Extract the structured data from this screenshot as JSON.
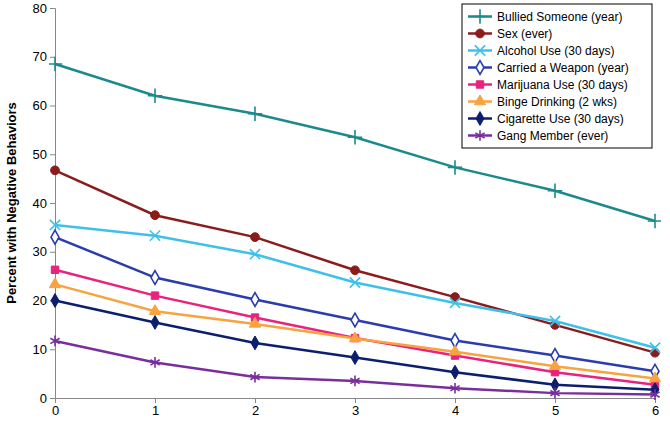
{
  "chart_data": {
    "type": "line",
    "y_label": "Percent with Negative Behaviors",
    "x": [
      0,
      1,
      2,
      3,
      4,
      5,
      6
    ],
    "xlim": [
      0,
      6
    ],
    "xticks": [
      0,
      1,
      2,
      3,
      4,
      5,
      6
    ],
    "ylim": [
      0,
      80
    ],
    "yticks": [
      0,
      10,
      20,
      30,
      40,
      50,
      60,
      70,
      80
    ],
    "grid": false,
    "legend": "top-right",
    "series": [
      {
        "name": "Bullied Someone (year)",
        "color": "#1b8a8c",
        "marker": "plus",
        "values": [
          68.5,
          62,
          58.3,
          53.5,
          47.3,
          42.5,
          36.3
        ]
      },
      {
        "name": "Sex (ever)",
        "color": "#8b1c1c",
        "marker": "circle",
        "values": [
          46.7,
          37.5,
          33,
          26.2,
          20.7,
          15,
          9.3
        ]
      },
      {
        "name": "Alcohol Use (30 days)",
        "color": "#3fc0ea",
        "marker": "x",
        "values": [
          35.5,
          33.3,
          29.5,
          23.7,
          19.5,
          15.8,
          10.3
        ]
      },
      {
        "name": "Carried a Weapon (year)",
        "color": "#2a3cae",
        "marker": "open-diamond",
        "values": [
          33,
          24.7,
          20.2,
          16,
          11.8,
          8.7,
          5.5
        ]
      },
      {
        "name": "Marijuana Use (30 days)",
        "color": "#e8237e",
        "marker": "square",
        "values": [
          26.3,
          21,
          16.5,
          12.3,
          8.7,
          5.3,
          2.7
        ]
      },
      {
        "name": "Binge Drinking (2 wks)",
        "color": "#f7a340",
        "marker": "triangle",
        "values": [
          23.3,
          17.8,
          15.2,
          12.2,
          9.5,
          6.5,
          4
        ]
      },
      {
        "name": "Cigarette Use (30 days)",
        "color": "#0c1f6e",
        "marker": "diamond",
        "values": [
          20,
          15.5,
          11.3,
          8.3,
          5.3,
          2.7,
          1.7
        ]
      },
      {
        "name": "Gang Member (ever)",
        "color": "#7a2e9e",
        "marker": "asterisk",
        "values": [
          11.7,
          7.3,
          4.3,
          3.5,
          2,
          1,
          0.7
        ]
      }
    ]
  }
}
